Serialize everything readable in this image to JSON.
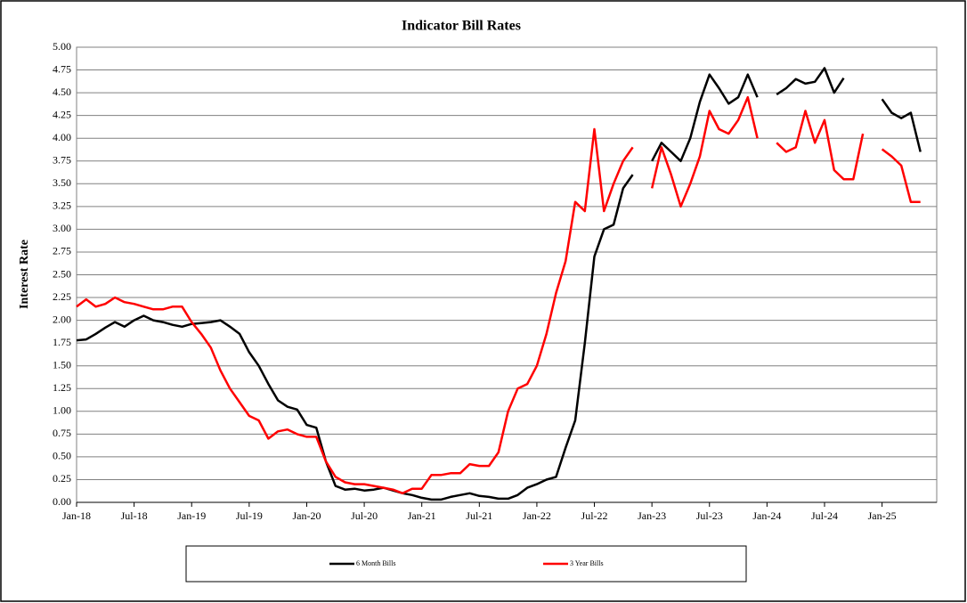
{
  "chart_data": {
    "type": "line",
    "title": "Indicator  Bill Rates",
    "y_label": "Interest Rate",
    "categories": [
      "Jan-18",
      null,
      null,
      null,
      null,
      null,
      "Jul-18",
      null,
      null,
      null,
      null,
      null,
      "Jan-19",
      null,
      null,
      null,
      null,
      null,
      "Jul-19",
      null,
      null,
      null,
      null,
      null,
      "Jan-20",
      null,
      null,
      null,
      null,
      null,
      "Jul-20",
      null,
      null,
      null,
      null,
      null,
      "Jan-21",
      null,
      null,
      null,
      null,
      null,
      "Jul-21",
      null,
      null,
      null,
      null,
      null,
      "Jan-22",
      null,
      null,
      null,
      null,
      null,
      "Jul-22",
      null,
      null,
      null,
      null,
      null,
      "Jan-23",
      null,
      null,
      null,
      null,
      null,
      "Jul-23",
      null,
      null,
      null,
      null,
      null,
      "Jan-24",
      null,
      null,
      null,
      null,
      null,
      "Jul-24",
      null,
      null,
      null,
      null,
      null,
      "Jan-25",
      null,
      null,
      null,
      null,
      null
    ],
    "series": [
      {
        "name": "6 Month Bills",
        "color": "#000000",
        "values": [
          1.78,
          1.79,
          1.85,
          1.92,
          1.98,
          1.93,
          2.0,
          2.05,
          2.0,
          1.98,
          1.95,
          1.93,
          1.96,
          1.97,
          1.98,
          2.0,
          1.93,
          1.85,
          1.65,
          1.5,
          1.3,
          1.12,
          1.05,
          1.02,
          0.85,
          0.82,
          0.45,
          0.18,
          0.14,
          0.15,
          0.13,
          0.14,
          0.16,
          0.13,
          0.1,
          0.08,
          0.05,
          0.03,
          0.03,
          0.06,
          0.08,
          0.1,
          0.07,
          0.06,
          0.04,
          0.04,
          0.08,
          0.16,
          0.2,
          0.25,
          0.28,
          0.6,
          0.9,
          1.75,
          2.7,
          3.0,
          3.05,
          3.45,
          3.6,
          null,
          3.75,
          3.95,
          3.85,
          3.75,
          4.0,
          4.4,
          4.7,
          4.55,
          4.38,
          4.45,
          4.7,
          4.45,
          null,
          4.48,
          4.55,
          4.65,
          4.6,
          4.62,
          4.77,
          4.5,
          4.66,
          null,
          null,
          null,
          4.43,
          4.28,
          4.22,
          4.28,
          3.85,
          null
        ]
      },
      {
        "name": "3 Year Bills",
        "color": "#ff0000",
        "values": [
          2.15,
          2.23,
          2.15,
          2.18,
          2.25,
          2.2,
          2.18,
          2.15,
          2.12,
          2.12,
          2.15,
          2.15,
          1.98,
          1.85,
          1.7,
          1.45,
          1.25,
          1.1,
          0.95,
          0.9,
          0.7,
          0.78,
          0.8,
          0.75,
          0.72,
          0.72,
          0.45,
          0.28,
          0.22,
          0.2,
          0.2,
          0.18,
          0.16,
          0.14,
          0.1,
          0.15,
          0.15,
          0.3,
          0.3,
          0.32,
          0.32,
          0.42,
          0.4,
          0.4,
          0.55,
          1.0,
          1.25,
          1.3,
          1.5,
          1.85,
          2.3,
          2.65,
          3.3,
          3.2,
          4.1,
          3.2,
          3.5,
          3.75,
          3.9,
          null,
          3.45,
          3.9,
          3.6,
          3.25,
          3.5,
          3.8,
          4.3,
          4.1,
          4.05,
          4.2,
          4.45,
          4.0,
          null,
          3.95,
          3.85,
          3.9,
          4.3,
          3.95,
          4.2,
          3.65,
          3.55,
          3.55,
          4.05,
          null,
          3.88,
          3.8,
          3.7,
          3.3,
          3.3,
          null
        ]
      }
    ],
    "ylim": [
      0,
      5
    ],
    "yticks": [
      {
        "value": 0,
        "label": "0.00"
      },
      {
        "value": 0.25,
        "label": "0.25"
      },
      {
        "value": 0.5,
        "label": "0.50"
      },
      {
        "value": 0.75,
        "label": "0.75"
      },
      {
        "value": 1,
        "label": "1.00"
      },
      {
        "value": 1.25,
        "label": "1.25"
      },
      {
        "value": 1.5,
        "label": "1.50"
      },
      {
        "value": 1.75,
        "label": "1.75"
      },
      {
        "value": 2,
        "label": "2.00"
      },
      {
        "value": 2.25,
        "label": "2.25"
      },
      {
        "value": 2.5,
        "label": "2.50"
      },
      {
        "value": 2.75,
        "label": "2.75"
      },
      {
        "value": 3,
        "label": "3.00"
      },
      {
        "value": 3.25,
        "label": "3.25"
      },
      {
        "value": 3.5,
        "label": "3.50"
      },
      {
        "value": 3.75,
        "label": "3.75"
      },
      {
        "value": 4,
        "label": "4.00"
      },
      {
        "value": 4.25,
        "label": "4.25"
      },
      {
        "value": 4.5,
        "label": "4.50"
      },
      {
        "value": 4.75,
        "label": "4.75"
      },
      {
        "value": 5,
        "label": "5.00"
      }
    ],
    "grid": true,
    "legend": "bottom"
  }
}
